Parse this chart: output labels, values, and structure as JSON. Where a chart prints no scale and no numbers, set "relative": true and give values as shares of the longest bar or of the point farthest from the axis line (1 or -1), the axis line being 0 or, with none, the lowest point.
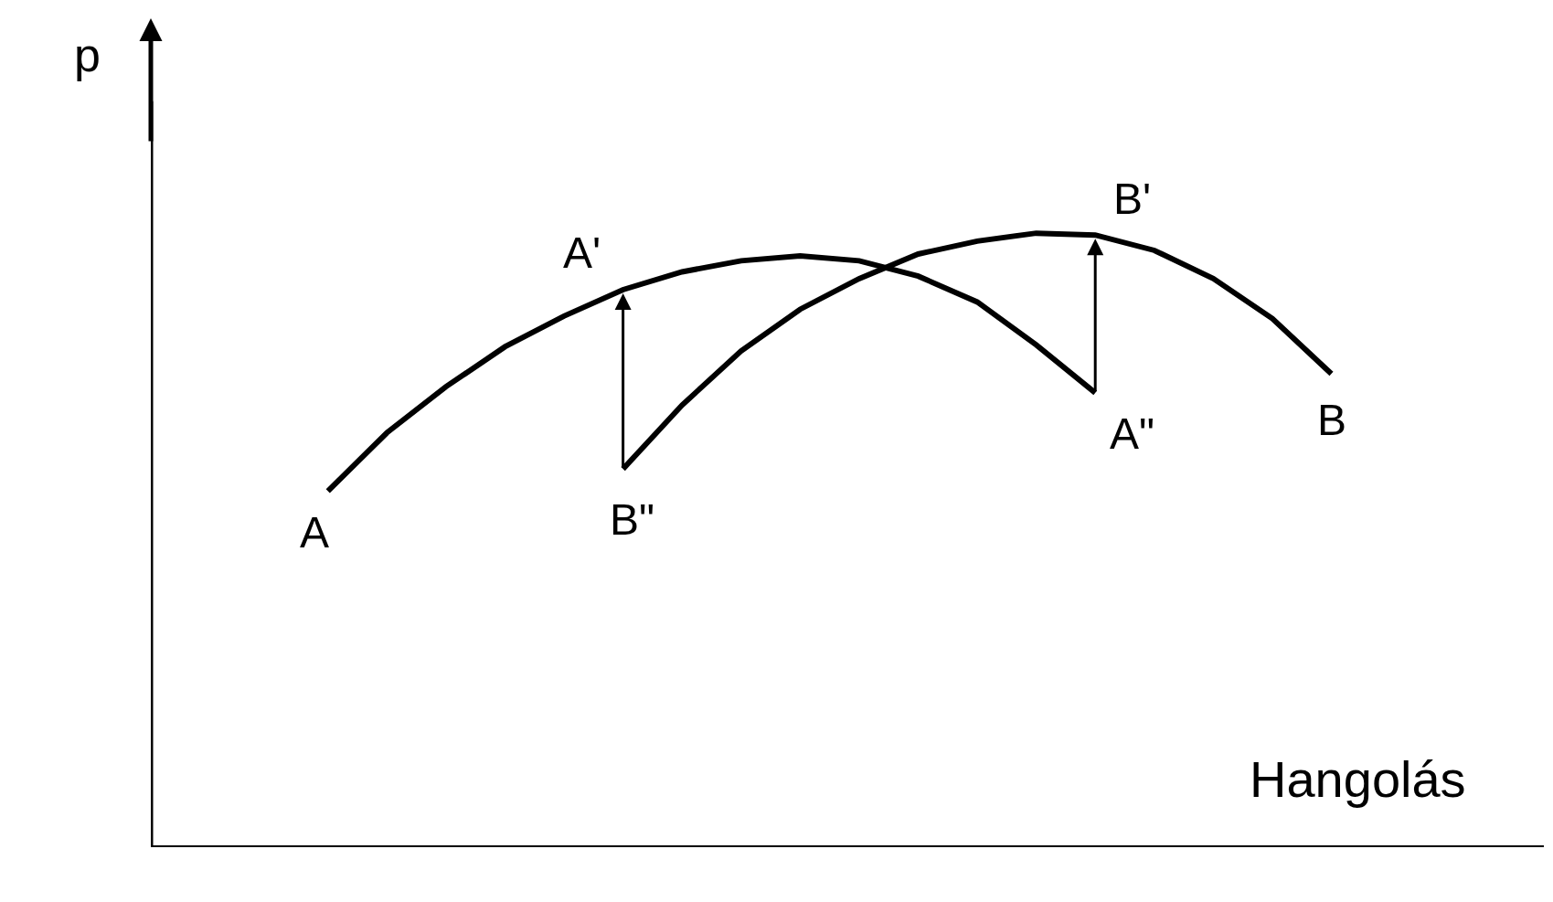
{
  "chart_data": {
    "type": "line",
    "relative": true,
    "xlabel": "Hangolás",
    "ylabel": "p",
    "line_style": "solid",
    "marker": "none",
    "categories": [
      null,
      null,
      null,
      null,
      null,
      null,
      null,
      null,
      null,
      null,
      null,
      null,
      null,
      null,
      null,
      null,
      null,
      null,
      null,
      null,
      null,
      null,
      null,
      null
    ],
    "series": [
      {
        "color": "#000000",
        "values": [
          null,
          null,
          null,
          0.58,
          0.675,
          0.75,
          0.815,
          0.865,
          0.908,
          0.937,
          0.955,
          0.963,
          0.955,
          0.93,
          0.888,
          0.818,
          0.74,
          null,
          null,
          null,
          null,
          null,
          null,
          null
        ]
      },
      {
        "color": "#000000",
        "values": [
          null,
          null,
          null,
          null,
          null,
          null,
          null,
          null,
          0.616,
          0.72,
          0.808,
          0.876,
          0.926,
          0.966,
          0.987,
          1.0,
          0.997,
          0.972,
          0.926,
          0.861,
          0.771,
          null,
          null,
          null
        ]
      }
    ],
    "annotations": [
      "A",
      "A'",
      "A\"",
      "B",
      "B'",
      "B\""
    ]
  }
}
